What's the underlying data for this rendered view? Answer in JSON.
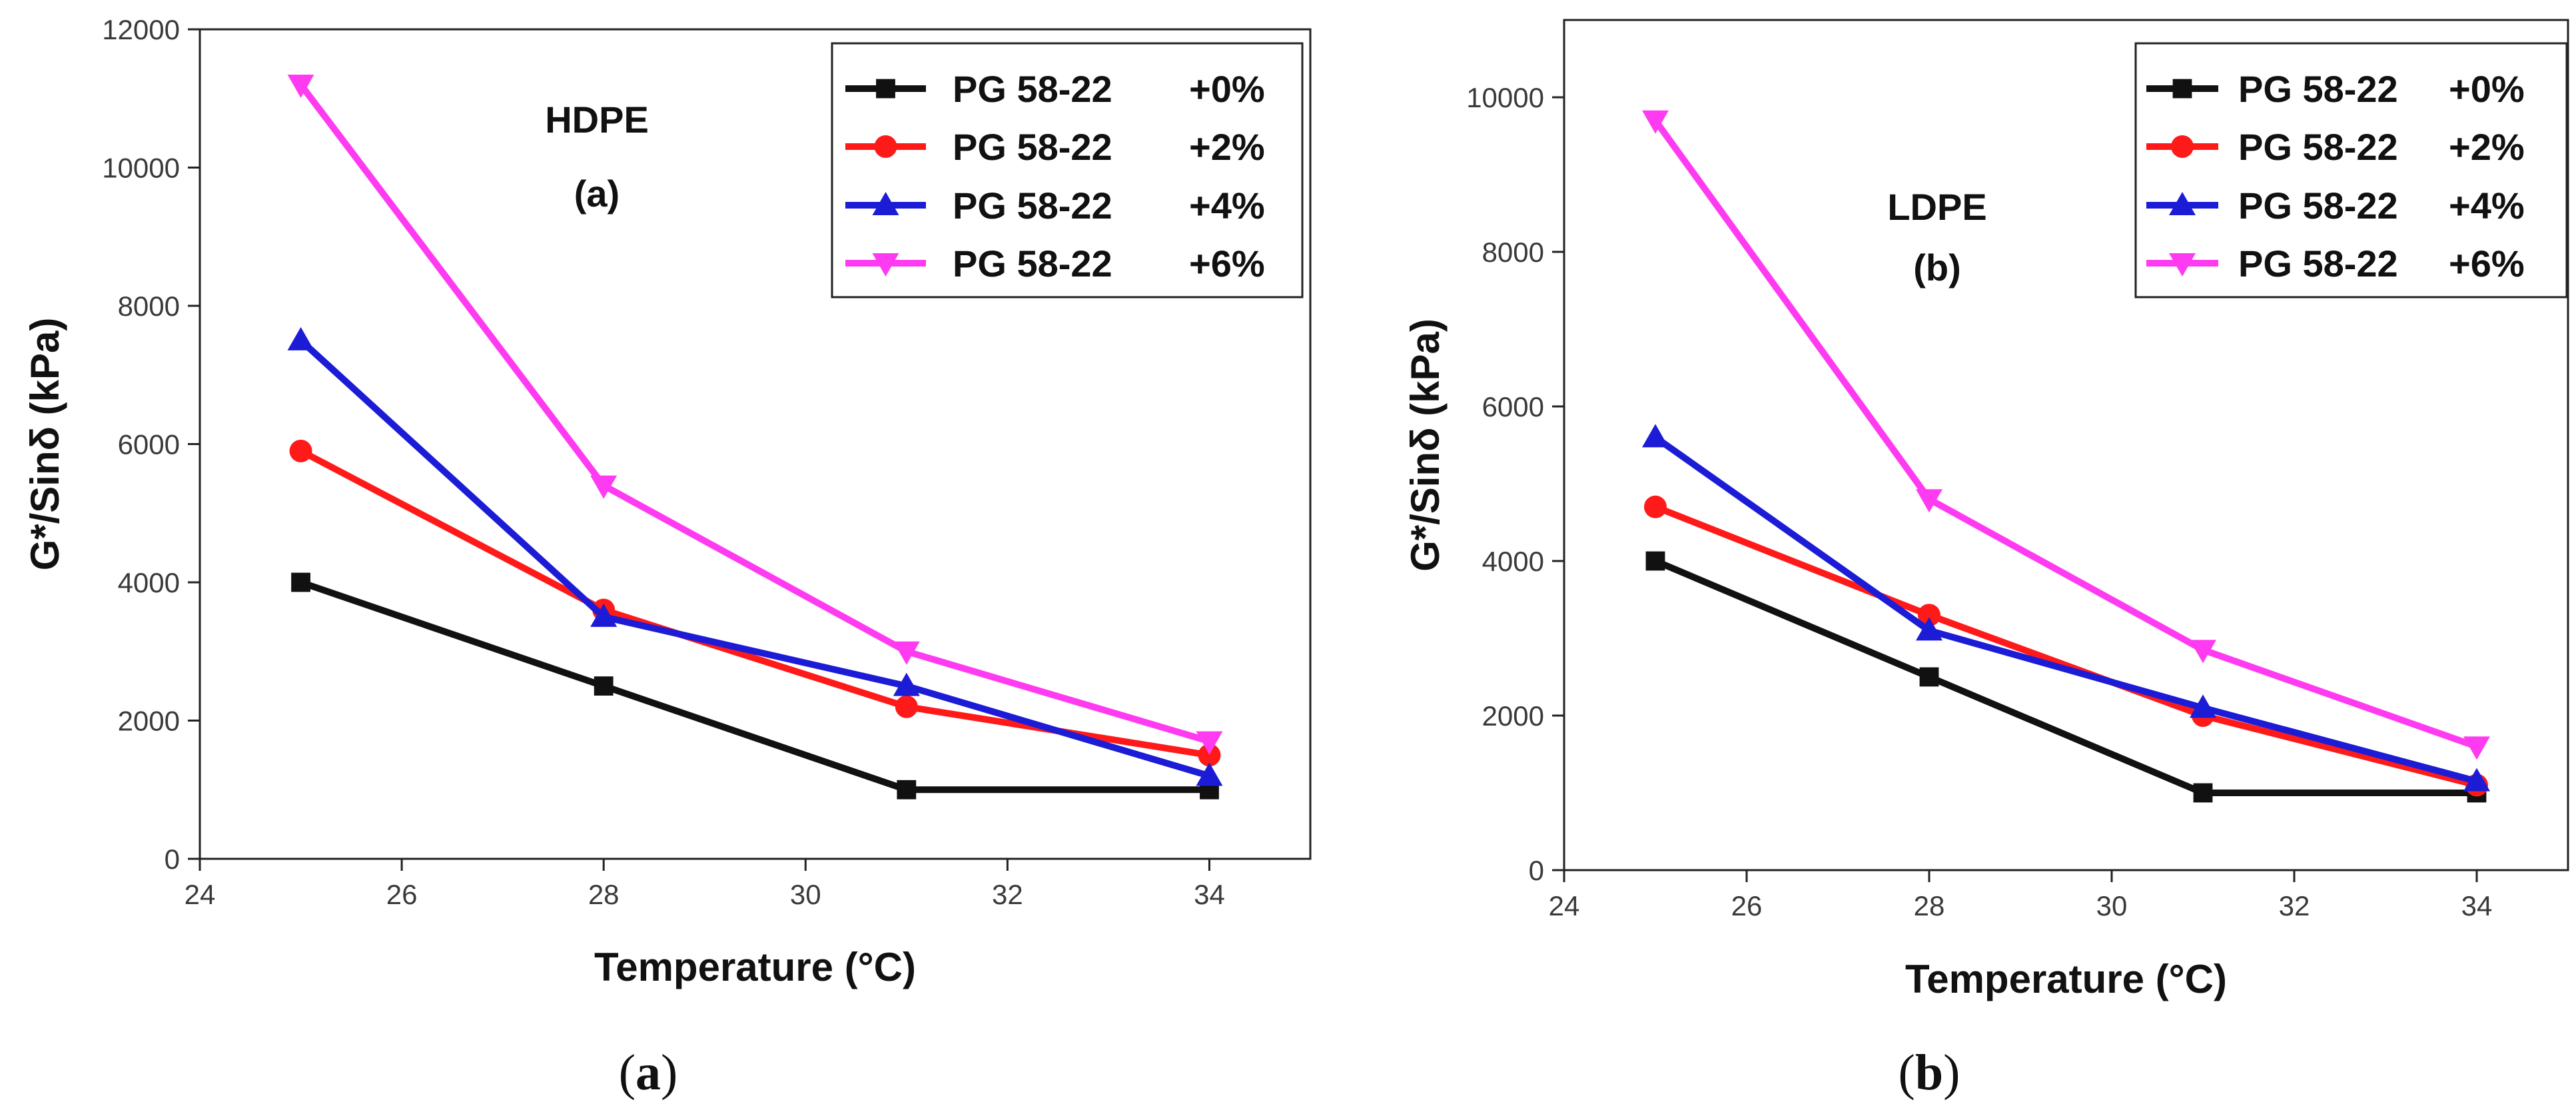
{
  "colors": [
    "#111111",
    "#ff1a1a",
    "#1c1cd6",
    "#ff3bf2"
  ],
  "markers": [
    "square",
    "circle",
    "triangle-up",
    "triangle-down"
  ],
  "chart_data": [
    {
      "type": "line",
      "annotation": "HDPE",
      "panel_label": "(a)",
      "xlabel": "Temperature (°C)",
      "ylabel": "G*/Sinδ (kPa)",
      "xlim": [
        24,
        35
      ],
      "ylim": [
        0,
        12000
      ],
      "xticks": [
        24,
        26,
        28,
        30,
        32,
        34
      ],
      "yticks": [
        0,
        2000,
        4000,
        6000,
        8000,
        10000,
        12000
      ],
      "x": [
        25,
        28,
        31,
        34
      ],
      "series": [
        {
          "name": "PG 58-22",
          "suffix": "+0%",
          "values": [
            4000,
            2500,
            1000,
            1000
          ]
        },
        {
          "name": "PG 58-22",
          "suffix": "+2%",
          "values": [
            5900,
            3600,
            2200,
            1500
          ]
        },
        {
          "name": "PG 58-22",
          "suffix": "+4%",
          "values": [
            7500,
            3500,
            2500,
            1200
          ]
        },
        {
          "name": "PG 58-22",
          "suffix": "+6%",
          "values": [
            11200,
            5400,
            3000,
            1700
          ]
        }
      ],
      "grid": false,
      "legend": "top-right",
      "caption": {
        "open": "(",
        "letter": "a",
        "close": ")"
      }
    },
    {
      "type": "line",
      "annotation": "LDPE",
      "panel_label": "(b)",
      "xlabel": "Temperature (°C)",
      "ylabel": "G*/Sinδ (kPa)",
      "xlim": [
        24,
        35
      ],
      "ylim": [
        0,
        11000
      ],
      "xticks": [
        24,
        26,
        28,
        30,
        32,
        34
      ],
      "yticks": [
        0,
        2000,
        4000,
        6000,
        8000,
        10000
      ],
      "x": [
        25,
        28,
        31,
        34
      ],
      "series": [
        {
          "name": "PG 58-22",
          "suffix": "+0%",
          "values": [
            4000,
            2500,
            1000,
            1000
          ]
        },
        {
          "name": "PG 58-22",
          "suffix": "+2%",
          "values": [
            4700,
            3300,
            2000,
            1100
          ]
        },
        {
          "name": "PG 58-22",
          "suffix": "+4%",
          "values": [
            5600,
            3100,
            2100,
            1150
          ]
        },
        {
          "name": "PG 58-22",
          "suffix": "+6%",
          "values": [
            9700,
            4800,
            2850,
            1600
          ]
        }
      ],
      "grid": false,
      "legend": "top-right",
      "caption": {
        "open": "(",
        "letter": "b",
        "close": ")"
      }
    }
  ]
}
